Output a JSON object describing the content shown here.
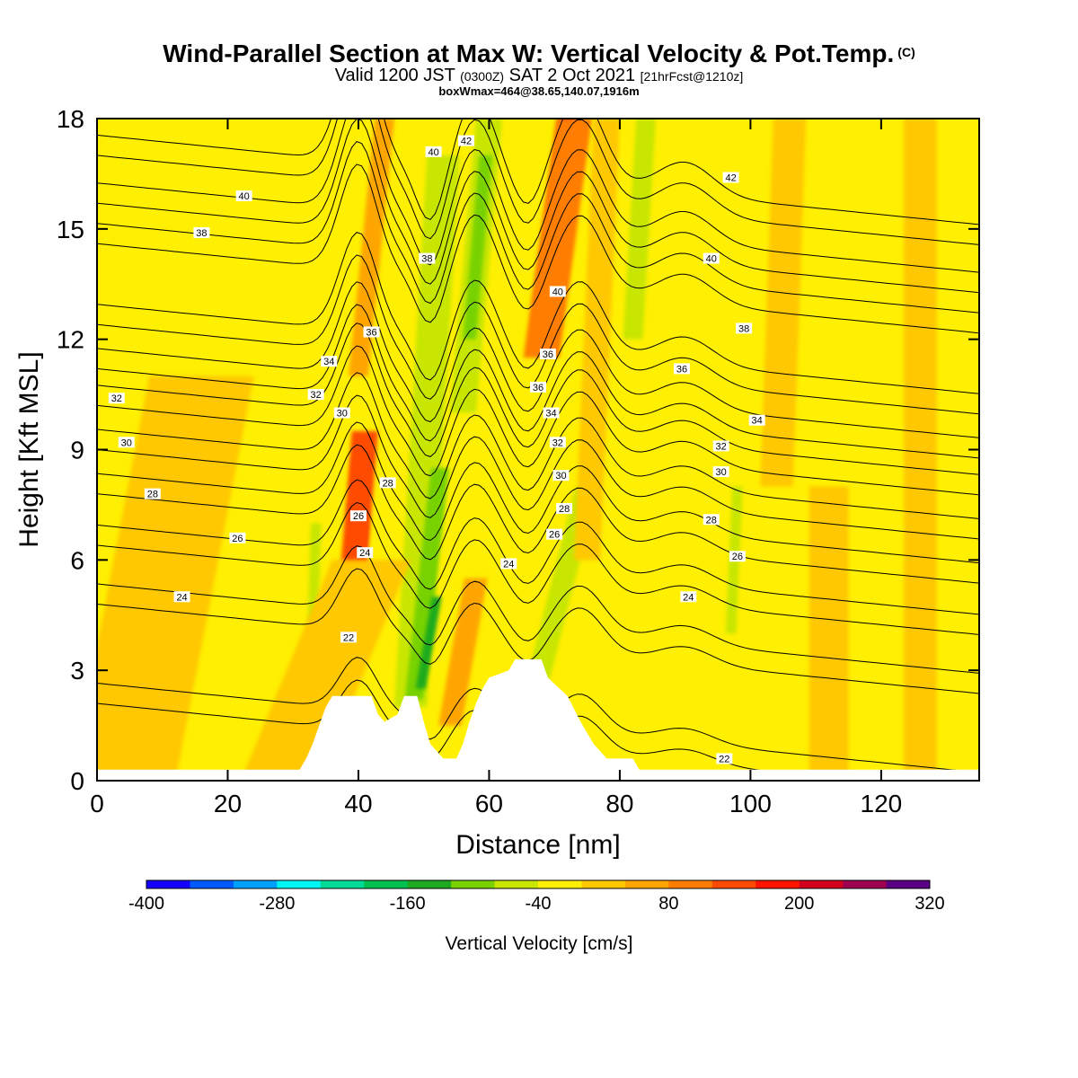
{
  "header": {
    "title": "Wind-Parallel Section at Max W: Vertical Velocity & Pot.Temp.",
    "copyright": "(C)",
    "subtitle_prefix": "Valid 1200 JST",
    "subtitle_utc": "(0300Z)",
    "subtitle_date": "SAT 2 Oct 2021",
    "subtitle_fcst": "[21hrFcst@1210z]",
    "subtitle2": "boxWmax=464@38.65,140.07,1916m"
  },
  "chart_data": {
    "type": "heatmap",
    "xlabel": "Distance [nm]",
    "ylabel": "Height [Kft MSL]",
    "xlim": [
      0,
      135
    ],
    "ylim": [
      0,
      18
    ],
    "x_ticks": [
      "0",
      "20",
      "40",
      "60",
      "80",
      "100",
      "120"
    ],
    "y_ticks": [
      "0",
      "3",
      "6",
      "9",
      "12",
      "15",
      "18"
    ],
    "colorbar": {
      "label": "Vertical Velocity [cm/s]",
      "ticks": [
        "-400",
        "-280",
        "-160",
        "-40",
        "80",
        "200",
        "320"
      ],
      "colors": [
        "#1400ff",
        "#005aff",
        "#00a0ff",
        "#00f5f5",
        "#00dc96",
        "#00c050",
        "#1eaa1e",
        "#78d200",
        "#c8e600",
        "#ffef00",
        "#ffc800",
        "#ffa500",
        "#ff7d00",
        "#ff4b00",
        "#ff1400",
        "#d2001e",
        "#a00050",
        "#5a0082"
      ]
    },
    "background_color": "#ffef00",
    "theta_contours": [
      {
        "label": "22",
        "base": 2.1,
        "spacing": 0
      },
      {
        "label": "24",
        "base": 4.8
      },
      {
        "label": "26",
        "base": 6.4
      },
      {
        "label": "28",
        "base": 7.8
      },
      {
        "label": "30",
        "base": 9.0
      },
      {
        "label": "32",
        "base": 10.2
      },
      {
        "label": "34",
        "base": 11.2
      },
      {
        "label": "36",
        "base": 12.4
      },
      {
        "label": "38",
        "base": 14.6
      },
      {
        "label": "40",
        "base": 15.7
      },
      {
        "label": "42",
        "base": 17.0
      }
    ],
    "contour_labels": [
      {
        "t": "22",
        "x": 38.5,
        "y": 3.9
      },
      {
        "t": "24",
        "x": 41.0,
        "y": 6.2
      },
      {
        "t": "26",
        "x": 40.0,
        "y": 7.2
      },
      {
        "t": "28",
        "x": 44.5,
        "y": 8.1
      },
      {
        "t": "30",
        "x": 37.5,
        "y": 10.0
      },
      {
        "t": "32",
        "x": 33.5,
        "y": 10.5
      },
      {
        "t": "34",
        "x": 35.5,
        "y": 11.4
      },
      {
        "t": "36",
        "x": 42.0,
        "y": 12.2
      },
      {
        "t": "38",
        "x": 50.5,
        "y": 14.2
      },
      {
        "t": "40",
        "x": 51.5,
        "y": 17.1
      },
      {
        "t": "42",
        "x": 56.5,
        "y": 17.4
      },
      {
        "t": "40",
        "x": 22.5,
        "y": 15.9
      },
      {
        "t": "38",
        "x": 16.0,
        "y": 14.9
      },
      {
        "t": "32",
        "x": 3.0,
        "y": 10.4
      },
      {
        "t": "30",
        "x": 4.5,
        "y": 9.2
      },
      {
        "t": "28",
        "x": 8.5,
        "y": 7.8
      },
      {
        "t": "26",
        "x": 21.5,
        "y": 6.6
      },
      {
        "t": "24",
        "x": 13.0,
        "y": 5.0
      },
      {
        "t": "24",
        "x": 63.0,
        "y": 5.9
      },
      {
        "t": "26",
        "x": 70.0,
        "y": 6.7
      },
      {
        "t": "28",
        "x": 71.5,
        "y": 7.4
      },
      {
        "t": "30",
        "x": 71.0,
        "y": 8.3
      },
      {
        "t": "32",
        "x": 70.5,
        "y": 9.2
      },
      {
        "t": "34",
        "x": 69.5,
        "y": 10.0
      },
      {
        "t": "36",
        "x": 67.5,
        "y": 10.7
      },
      {
        "t": "36",
        "x": 69.0,
        "y": 11.6
      },
      {
        "t": "40",
        "x": 70.5,
        "y": 13.3
      },
      {
        "t": "42",
        "x": 97.0,
        "y": 16.4
      },
      {
        "t": "40",
        "x": 94.0,
        "y": 14.2
      },
      {
        "t": "38",
        "x": 99.0,
        "y": 12.3
      },
      {
        "t": "36",
        "x": 89.5,
        "y": 11.2
      },
      {
        "t": "34",
        "x": 101.0,
        "y": 9.8
      },
      {
        "t": "32",
        "x": 95.5,
        "y": 9.1
      },
      {
        "t": "30",
        "x": 95.5,
        "y": 8.4
      },
      {
        "t": "28",
        "x": 94.0,
        "y": 7.1
      },
      {
        "t": "26",
        "x": 98.0,
        "y": 6.1
      },
      {
        "t": "24",
        "x": 90.5,
        "y": 5.0
      },
      {
        "t": "22",
        "x": 96.0,
        "y": 0.6
      }
    ],
    "plumes": [
      {
        "bin": 17,
        "x0": 39.5,
        "x1": 40.5,
        "y0": 5.0,
        "y1": 7.0,
        "w": 1.6
      },
      {
        "bin": 15,
        "x0": 39.0,
        "x1": 40.5,
        "y0": 3.8,
        "y1": 8.8,
        "w": 2.4
      },
      {
        "bin": 13,
        "x0": 38.0,
        "x1": 41.0,
        "y0": 3.0,
        "y1": 9.5,
        "w": 4.0
      },
      {
        "bin": 15,
        "x0": 69.0,
        "x1": 72.0,
        "y0": 13.5,
        "y1": 18.0,
        "w": 2.0
      },
      {
        "bin": 14,
        "x0": 68.5,
        "x1": 72.5,
        "y0": 12.5,
        "y1": 18.0,
        "w": 3.4
      },
      {
        "bin": 12,
        "x0": 68.0,
        "x1": 73.0,
        "y0": 11.5,
        "y1": 18.0,
        "w": 5.5
      },
      {
        "bin": 8,
        "x0": 48.0,
        "x1": 53.0,
        "y0": 2.0,
        "y1": 17.0,
        "w": 5.0
      },
      {
        "bin": 7,
        "x0": 48.5,
        "x1": 52.5,
        "y0": 2.2,
        "y1": 8.5,
        "w": 2.8
      },
      {
        "bin": 6,
        "x0": 49.5,
        "x1": 52.0,
        "y0": 2.5,
        "y1": 5.0,
        "w": 1.5
      },
      {
        "bin": 8,
        "x0": 56.0,
        "x1": 60.0,
        "y0": 10.0,
        "y1": 18.0,
        "w": 4.0
      },
      {
        "bin": 7,
        "x0": 57.0,
        "x1": 59.5,
        "y0": 12.0,
        "y1": 17.0,
        "w": 2.0
      },
      {
        "bin": 8,
        "x0": 65.0,
        "x1": 75.0,
        "y0": 1.0,
        "y1": 8.0,
        "w": 3.5
      },
      {
        "bin": 8,
        "x0": 82.0,
        "x1": 84.0,
        "y0": 12.0,
        "y1": 18.0,
        "w": 3.0
      },
      {
        "bin": 8,
        "x0": 97.0,
        "x1": 98.0,
        "y0": 4.0,
        "y1": 8.0,
        "w": 1.6
      },
      {
        "bin": 8,
        "x0": 33.0,
        "x1": 33.5,
        "y0": 4.0,
        "y1": 7.0,
        "w": 1.6
      },
      {
        "bin": 10,
        "x0": 4.0,
        "x1": 16.0,
        "y0": 0.0,
        "y1": 11.0,
        "w": 16.0
      },
      {
        "bin": 10,
        "x0": 28.0,
        "x1": 42.0,
        "y0": 0.0,
        "y1": 6.0,
        "w": 12.0
      },
      {
        "bin": 11,
        "x0": 40.0,
        "x1": 44.0,
        "y0": 11.0,
        "y1": 18.0,
        "w": 3.0
      },
      {
        "bin": 11,
        "x0": 54.0,
        "x1": 58.0,
        "y0": 1.5,
        "y1": 5.5,
        "w": 3.5
      },
      {
        "bin": 10,
        "x0": 112.0,
        "x1": 112.0,
        "y0": 0.0,
        "y1": 8.0,
        "w": 6.0
      },
      {
        "bin": 10,
        "x0": 126.0,
        "x1": 126.0,
        "y0": 0.0,
        "y1": 18.0,
        "w": 5.0
      },
      {
        "bin": 10,
        "x0": 104.0,
        "x1": 106.0,
        "y0": 8.0,
        "y1": 18.0,
        "w": 5.0
      },
      {
        "bin": 10,
        "x0": 75.0,
        "x1": 78.0,
        "y0": 6.0,
        "y1": 18.0,
        "w": 4.0
      }
    ],
    "terrain": [
      [
        0,
        0.3
      ],
      [
        31,
        0.3
      ],
      [
        32,
        0.6
      ],
      [
        33,
        1.0
      ],
      [
        34,
        1.5
      ],
      [
        35,
        2.0
      ],
      [
        36,
        2.3
      ],
      [
        42,
        2.3
      ],
      [
        43,
        1.8
      ],
      [
        44,
        1.6
      ],
      [
        46,
        1.8
      ],
      [
        47,
        2.3
      ],
      [
        49,
        2.3
      ],
      [
        50,
        1.6
      ],
      [
        51,
        1.0
      ],
      [
        53,
        0.6
      ],
      [
        55,
        0.6
      ],
      [
        56,
        1.0
      ],
      [
        57,
        1.6
      ],
      [
        58,
        2.1
      ],
      [
        59,
        2.5
      ],
      [
        60,
        2.8
      ],
      [
        63,
        3.0
      ],
      [
        64,
        3.3
      ],
      [
        68,
        3.3
      ],
      [
        69,
        2.8
      ],
      [
        72,
        2.3
      ],
      [
        74,
        1.6
      ],
      [
        76,
        1.0
      ],
      [
        78,
        0.6
      ],
      [
        82,
        0.6
      ],
      [
        83,
        0.3
      ],
      [
        135,
        0.3
      ]
    ]
  }
}
